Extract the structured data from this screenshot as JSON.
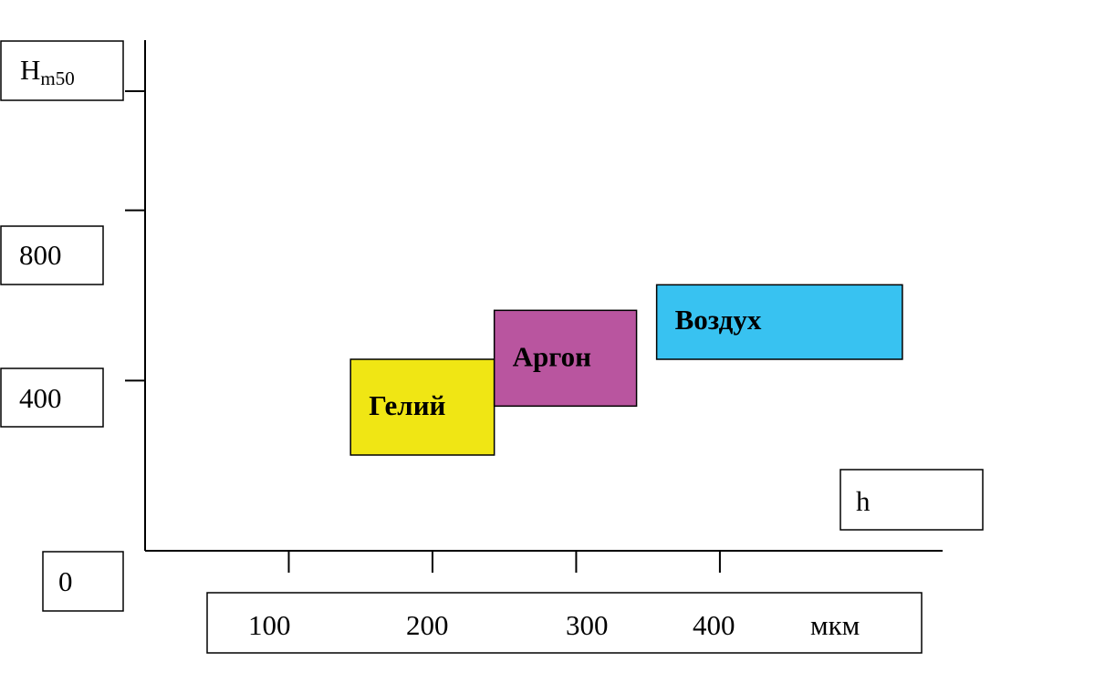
{
  "chart_data": {
    "type": "bar",
    "subtype": "range-boxes",
    "ylabel": {
      "main": "H",
      "sub": "m50"
    },
    "xlabel": "h",
    "x_unit": "мкм",
    "x_ticks": [
      "100",
      "200",
      "300",
      "400"
    ],
    "y_ticks": [
      "0",
      "400",
      "800"
    ],
    "xlim": [
      0,
      555
    ],
    "ylim": [
      0,
      1200
    ],
    "grid": false,
    "legend": "none",
    "series": [
      {
        "name": "Гелий",
        "x_range": [
          143,
          243
        ],
        "y_range": [
          225,
          450
        ],
        "color": "#f0e614"
      },
      {
        "name": "Аргон",
        "x_range": [
          243,
          342
        ],
        "y_range": [
          340,
          565
        ],
        "color": "#b9559f"
      },
      {
        "name": "Воздух",
        "x_range": [
          356,
          527
        ],
        "y_range": [
          450,
          625
        ],
        "color": "#38c2f1"
      }
    ]
  }
}
